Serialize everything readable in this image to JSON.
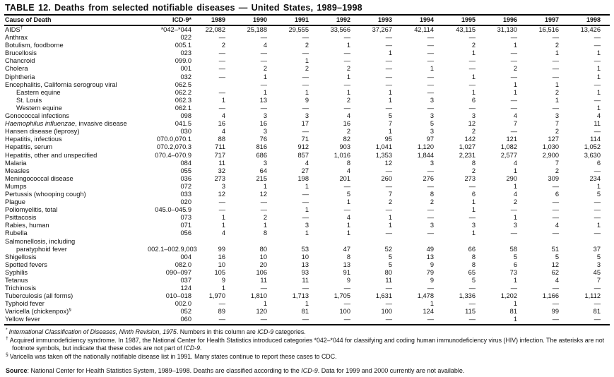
{
  "title": "TABLE 12. Deaths from selected notifiable diseases — United States, 1989–1998",
  "table": {
    "columns": [
      "Cause of Death",
      "ICD-9*",
      "1989",
      "1990",
      "1991",
      "1992",
      "1993",
      "1994",
      "1995",
      "1996",
      "1997",
      "1998"
    ],
    "rows": [
      {
        "cause": "AIDS",
        "sup": "†",
        "icd": "*042–*044",
        "values": [
          "22,082",
          "25,188",
          "29,555",
          "33,566",
          "37,267",
          "42,114",
          "43,115",
          "31,130",
          "16,516",
          "13,426"
        ]
      },
      {
        "cause": "Anthrax",
        "icd": "022",
        "values": [
          "—",
          "—",
          "—",
          "—",
          "—",
          "—",
          "—",
          "—",
          "—",
          "—"
        ]
      },
      {
        "cause": "Botulism, foodborne",
        "icd": "005.1",
        "values": [
          "2",
          "4",
          "2",
          "1",
          "—",
          "—",
          "2",
          "1",
          "2",
          "—"
        ]
      },
      {
        "cause": "Brucellosis",
        "icd": "023",
        "values": [
          "—",
          "—",
          "—",
          "—",
          "1",
          "—",
          "1",
          "—",
          "1",
          "1"
        ]
      },
      {
        "cause": "Chancroid",
        "icd": "099.0",
        "values": [
          "—",
          "—",
          "1",
          "—",
          "—",
          "—",
          "—",
          "—",
          "—",
          "—"
        ]
      },
      {
        "cause": "Cholera",
        "icd": "001",
        "values": [
          "—",
          "2",
          "2",
          "2",
          "—",
          "1",
          "—",
          "2",
          "—",
          "1"
        ]
      },
      {
        "cause": "Diphtheria",
        "icd": "032",
        "values": [
          "—",
          "1",
          "—",
          "1",
          "—",
          "—",
          "1",
          "—",
          "—",
          "1"
        ]
      },
      {
        "cause": "Encephalitis, California serogroup viral",
        "icd": "062.5",
        "values": [
          "",
          "—",
          "—",
          "—",
          "—",
          "—",
          "—",
          "1",
          "1",
          "—"
        ]
      },
      {
        "cause": "Eastern equine",
        "indent": 1,
        "icd": "062.2",
        "values": [
          "—",
          "1",
          "1",
          "1",
          "1",
          "—",
          "1",
          "1",
          "2",
          "1"
        ]
      },
      {
        "cause": "St. Louis",
        "indent": 1,
        "icd": "062.3",
        "values": [
          "1",
          "13",
          "9",
          "2",
          "1",
          "3",
          "6",
          "—",
          "1",
          "—"
        ]
      },
      {
        "cause": "Western equine",
        "indent": 1,
        "icd": "062.1",
        "values": [
          "—",
          "—",
          "—",
          "—",
          "—",
          "—",
          "—",
          "—",
          "—",
          "1"
        ]
      },
      {
        "cause": "Gonococcal infections",
        "icd": "098",
        "values": [
          "4",
          "3",
          "3",
          "4",
          "5",
          "3",
          "3",
          "4",
          "3",
          "4"
        ]
      },
      {
        "cause_italic": "Haemophilus influenzae",
        "cause": ", invasive disease",
        "icd": "041.5",
        "values": [
          "16",
          "16",
          "17",
          "16",
          "7",
          "5",
          "12",
          "7",
          "7",
          "11"
        ]
      },
      {
        "cause": "Hansen disease (leprosy)",
        "icd": "030",
        "values": [
          "4",
          "3",
          "—",
          "2",
          "1",
          "3",
          "2",
          "—",
          "2",
          "—"
        ]
      },
      {
        "cause": "Hepatitis, infectious",
        "icd": "070.0,070.1",
        "values": [
          "88",
          "76",
          "71",
          "82",
          "95",
          "97",
          "142",
          "121",
          "127",
          "114"
        ]
      },
      {
        "cause": "Hepatitis, serum",
        "icd": "070.2,070.3",
        "values": [
          "711",
          "816",
          "912",
          "903",
          "1,041",
          "1,120",
          "1,027",
          "1,082",
          "1,030",
          "1,052"
        ]
      },
      {
        "cause": "Hepatitis, other and unspecified",
        "icd": "070.4–070.9",
        "values": [
          "717",
          "686",
          "857",
          "1,016",
          "1,353",
          "1,844",
          "2,231",
          "2,577",
          "2,900",
          "3,630"
        ]
      },
      {
        "cause": "Malaria",
        "icd": "084",
        "values": [
          "11",
          "3",
          "4",
          "8",
          "12",
          "3",
          "8",
          "4",
          "7",
          "6"
        ]
      },
      {
        "cause": "Measles",
        "icd": "055",
        "values": [
          "32",
          "64",
          "27",
          "4",
          "—",
          "—",
          "2",
          "1",
          "2",
          "—"
        ]
      },
      {
        "cause": "Meningococcal disease",
        "icd": "036",
        "values": [
          "273",
          "215",
          "198",
          "201",
          "260",
          "276",
          "273",
          "290",
          "309",
          "234"
        ]
      },
      {
        "cause": "Mumps",
        "icd": "072",
        "values": [
          "3",
          "1",
          "1",
          "—",
          "—",
          "—",
          "—",
          "1",
          "—",
          "1"
        ]
      },
      {
        "cause": "Pertussis (whooping cough)",
        "icd": "033",
        "values": [
          "12",
          "12",
          "—",
          "5",
          "7",
          "8",
          "6",
          "4",
          "6",
          "5"
        ]
      },
      {
        "cause": "Plague",
        "icd": "020",
        "values": [
          "—",
          "—",
          "—",
          "1",
          "2",
          "2",
          "1",
          "2",
          "—",
          "—"
        ]
      },
      {
        "cause": "Poliomyelitis, total",
        "icd": "045.0–045.9",
        "values": [
          "—",
          "—",
          "1",
          "—",
          "—",
          "—",
          "1",
          "—",
          "—",
          "—"
        ]
      },
      {
        "cause": "Psittacosis",
        "icd": "073",
        "values": [
          "1",
          "2",
          "—",
          "4",
          "1",
          "—",
          "—",
          "1",
          "—",
          "—"
        ]
      },
      {
        "cause": "Rabies, human",
        "icd": "071",
        "values": [
          "1",
          "1",
          "3",
          "1",
          "1",
          "3",
          "3",
          "3",
          "4",
          "1"
        ]
      },
      {
        "cause": "Rubella",
        "icd": "056",
        "values": [
          "4",
          "8",
          "1",
          "1",
          "—",
          "—",
          "1",
          "—",
          "—",
          "—"
        ]
      },
      {
        "cause": "Salmonellosis, including",
        "icd": "",
        "values": [
          "",
          "",
          "",
          "",
          "",
          "",
          "",
          "",
          "",
          ""
        ]
      },
      {
        "cause": "paratyphoid fever",
        "indent": 1,
        "icd": "002.1–002.9,003",
        "values": [
          "99",
          "80",
          "53",
          "47",
          "52",
          "49",
          "66",
          "58",
          "51",
          "37"
        ]
      },
      {
        "cause": "Shigellosis",
        "icd": "004",
        "values": [
          "16",
          "10",
          "10",
          "8",
          "5",
          "13",
          "8",
          "5",
          "5",
          "5"
        ]
      },
      {
        "cause": "Spotted fevers",
        "icd": "082.0",
        "values": [
          "10",
          "20",
          "13",
          "13",
          "5",
          "9",
          "8",
          "6",
          "12",
          "3"
        ]
      },
      {
        "cause": "Syphilis",
        "icd": "090–097",
        "values": [
          "105",
          "106",
          "93",
          "91",
          "80",
          "79",
          "65",
          "73",
          "62",
          "45"
        ]
      },
      {
        "cause": "Tetanus",
        "icd": "037",
        "values": [
          "9",
          "11",
          "11",
          "9",
          "11",
          "9",
          "5",
          "1",
          "4",
          "7"
        ]
      },
      {
        "cause": "Trichinosis",
        "icd": "124",
        "values": [
          "1",
          "—",
          "—",
          "—",
          "—",
          "—",
          "—",
          "—",
          "—",
          "—"
        ]
      },
      {
        "cause": "Tuberculosis (all forms)",
        "icd": "010–018",
        "values": [
          "1,970",
          "1,810",
          "1,713",
          "1,705",
          "1,631",
          "1,478",
          "1,336",
          "1,202",
          "1,166",
          "1,112"
        ]
      },
      {
        "cause": "Typhoid fever",
        "icd": "002.0",
        "values": [
          "—",
          "1",
          "1",
          "—",
          "—",
          "1",
          "—",
          "1",
          "—",
          "—"
        ]
      },
      {
        "cause": "Varicella (chickenpox)",
        "sup": "§",
        "icd": "052",
        "values": [
          "89",
          "120",
          "81",
          "100",
          "100",
          "124",
          "115",
          "81",
          "99",
          "81"
        ]
      },
      {
        "cause": "Yellow fever",
        "icd": "060",
        "values": [
          "—",
          "—",
          "—",
          "—",
          "—",
          "—",
          "—",
          "1",
          "—",
          "—"
        ]
      }
    ]
  },
  "footnotes": [
    {
      "marker": "*",
      "segments": [
        {
          "text": "International Classification of Diseases, Ninth Revision, 1975",
          "italic": true
        },
        {
          "text": ". Numbers in this column are ",
          "italic": false
        },
        {
          "text": "ICD-9",
          "italic": true
        },
        {
          "text": " categories.",
          "italic": false
        }
      ]
    },
    {
      "marker": "†",
      "segments": [
        {
          "text": "Acquired immunodeficiency syndrome. In 1987, the National Center for Health Statistics introduced categories *042–*044 for classifying and coding human immunodeficiency virus (HIV) infection. The asterisks are not footnote symbols, but indicate that these codes are not part of ",
          "italic": false
        },
        {
          "text": "ICD-9",
          "italic": true
        },
        {
          "text": ".",
          "italic": false
        }
      ]
    },
    {
      "marker": "§",
      "segments": [
        {
          "text": "Varicella was taken off the nationally notifiable disease list in 1991. Many states continue to report these cases to CDC.",
          "italic": false
        }
      ]
    }
  ],
  "source": {
    "label": "Source",
    "segments": [
      {
        "text": ": National Center for Health Statistics System, 1989–1998. Deaths are classified according to the ",
        "italic": false
      },
      {
        "text": "ICD-9",
        "italic": true
      },
      {
        "text": ". Data for 1999 and 2000 currently are not available.",
        "italic": false
      }
    ]
  }
}
